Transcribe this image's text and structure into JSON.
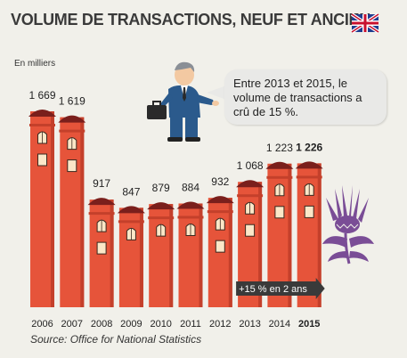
{
  "title": "VOLUME DE TRANSACTIONS, NEUF ET ANCIEN",
  "unit_label": "En milliers",
  "callout": "Entre 2013 et 2015, le volume de transactions a crû de 15 %.",
  "arrow_label": "+15 % en 2 ans",
  "source": "Source: Office for National Statistics",
  "icons": [
    "uk-flag-icon",
    "businessman-icon",
    "thistle-icon"
  ],
  "colors": {
    "bar": "#e6543a",
    "bar_dark": "#c4402b",
    "roof": "#7a1f1c",
    "window": "#fbe7c8",
    "thistle": "#7a4d96",
    "arrow": "#3a3a3a"
  },
  "chart_data": {
    "type": "bar",
    "categories": [
      "2006",
      "2007",
      "2008",
      "2009",
      "2010",
      "2011",
      "2012",
      "2013",
      "2014",
      "2015"
    ],
    "value_labels": [
      "1 669",
      "1 619",
      "917",
      "847",
      "879",
      "884",
      "932",
      "1 068",
      "1 223",
      "1 226"
    ],
    "values": [
      1669,
      1619,
      917,
      847,
      879,
      884,
      932,
      1068,
      1223,
      1226
    ],
    "highlight_category": "2015",
    "grid": false,
    "legend": "none"
  }
}
